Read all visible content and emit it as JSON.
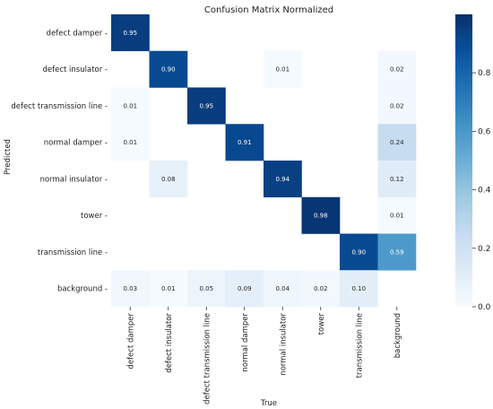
{
  "chart_data": {
    "type": "heatmap",
    "title": "Confusion Matrix Normalized",
    "xlabel": "True",
    "ylabel": "Predicted",
    "row_labels": [
      "defect damper",
      "defect insulator",
      "defect transmission line",
      "normal damper",
      "normal insulator",
      "tower",
      "transmission line",
      "background"
    ],
    "col_labels": [
      "defect damper",
      "defect insulator",
      "defect transmission line",
      "normal damper",
      "normal insulator",
      "tower",
      "transmission line",
      "background"
    ],
    "values": [
      [
        0.95,
        null,
        null,
        null,
        null,
        null,
        null,
        null
      ],
      [
        null,
        0.9,
        null,
        null,
        0.01,
        null,
        null,
        0.02
      ],
      [
        0.01,
        null,
        0.95,
        null,
        null,
        null,
        null,
        0.02
      ],
      [
        0.01,
        null,
        null,
        0.91,
        null,
        null,
        null,
        0.24
      ],
      [
        null,
        0.08,
        null,
        null,
        0.94,
        null,
        null,
        0.12
      ],
      [
        null,
        null,
        null,
        null,
        null,
        0.98,
        null,
        0.01
      ],
      [
        null,
        null,
        null,
        null,
        null,
        null,
        0.9,
        0.59
      ],
      [
        0.03,
        0.01,
        0.05,
        0.09,
        0.04,
        0.02,
        0.1,
        null
      ]
    ],
    "colorbar": {
      "range": [
        0,
        1
      ],
      "ticks": [
        "0.0",
        "0.2",
        "0.4",
        "0.6",
        "0.8"
      ],
      "colormap": "Blues"
    }
  }
}
